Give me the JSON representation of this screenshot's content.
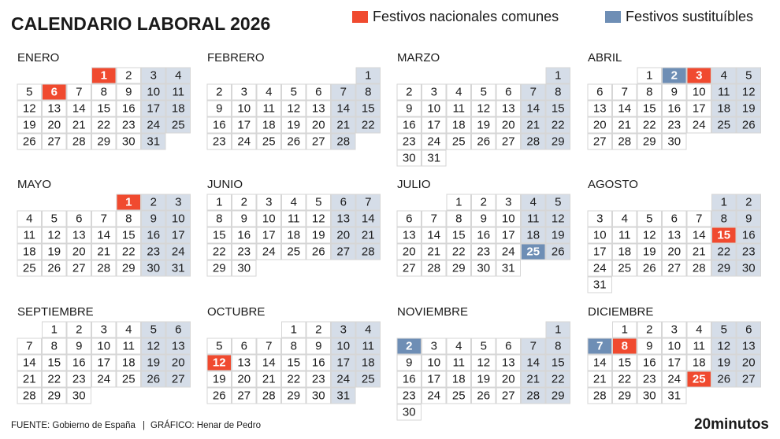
{
  "title": "CALENDARIO LABORAL 2026",
  "legend": [
    {
      "label": "Festivos nacionales comunes",
      "color": "#f04a2f"
    },
    {
      "label": "Festivos sustituíbles",
      "color": "#6e8eb5"
    }
  ],
  "months": [
    {
      "name": "ENERO",
      "days": [
        null,
        null,
        null,
        1,
        2,
        3,
        4,
        5,
        6,
        7,
        8,
        9,
        10,
        11,
        12,
        13,
        14,
        15,
        16,
        17,
        18,
        19,
        20,
        21,
        22,
        23,
        24,
        25,
        26,
        27,
        28,
        29,
        30,
        31
      ],
      "national": [
        1,
        6
      ]
    },
    {
      "name": "FEBRERO",
      "days": [
        null,
        null,
        null,
        null,
        null,
        null,
        1,
        2,
        3,
        4,
        5,
        6,
        7,
        8,
        9,
        10,
        11,
        12,
        13,
        14,
        15,
        16,
        17,
        18,
        19,
        20,
        21,
        22,
        23,
        24,
        25,
        26,
        27,
        28
      ]
    },
    {
      "name": "MARZO",
      "days": [
        null,
        null,
        null,
        null,
        null,
        null,
        1,
        2,
        3,
        4,
        5,
        6,
        7,
        8,
        9,
        10,
        11,
        12,
        13,
        14,
        15,
        16,
        17,
        18,
        19,
        20,
        21,
        22,
        23,
        24,
        25,
        26,
        27,
        28,
        29,
        30,
        31
      ]
    },
    {
      "name": "ABRIL",
      "days": [
        null,
        null,
        1,
        2,
        3,
        4,
        5,
        6,
        7,
        8,
        9,
        10,
        11,
        12,
        13,
        14,
        15,
        16,
        17,
        18,
        19,
        20,
        21,
        22,
        23,
        24,
        25,
        26,
        27,
        28,
        29,
        30
      ],
      "national": [
        3
      ],
      "substitute": [
        2
      ]
    },
    {
      "name": "MAYO",
      "days": [
        null,
        null,
        null,
        null,
        1,
        2,
        3,
        4,
        5,
        6,
        7,
        8,
        9,
        10,
        11,
        12,
        13,
        14,
        15,
        16,
        17,
        18,
        19,
        20,
        21,
        22,
        23,
        24,
        25,
        26,
        27,
        28,
        29,
        30,
        31
      ],
      "national": [
        1
      ]
    },
    {
      "name": "JUNIO",
      "days": [
        1,
        2,
        3,
        4,
        5,
        6,
        7,
        8,
        9,
        10,
        11,
        12,
        13,
        14,
        15,
        16,
        17,
        18,
        19,
        20,
        21,
        22,
        23,
        24,
        25,
        26,
        27,
        28,
        29,
        30
      ]
    },
    {
      "name": "JULIO",
      "days": [
        null,
        null,
        1,
        2,
        3,
        4,
        5,
        6,
        7,
        8,
        9,
        10,
        11,
        12,
        13,
        14,
        15,
        16,
        17,
        18,
        19,
        20,
        21,
        22,
        23,
        24,
        25,
        26,
        27,
        28,
        29,
        30,
        31
      ],
      "substitute": [
        25
      ]
    },
    {
      "name": "AGOSTO",
      "days": [
        null,
        null,
        null,
        null,
        null,
        1,
        2,
        3,
        4,
        5,
        6,
        7,
        8,
        9,
        10,
        11,
        12,
        13,
        14,
        15,
        16,
        17,
        18,
        19,
        20,
        21,
        22,
        23,
        24,
        25,
        26,
        27,
        28,
        29,
        30,
        31
      ],
      "national": [
        15
      ]
    },
    {
      "name": "SEPTIEMBRE",
      "days": [
        null,
        1,
        2,
        3,
        4,
        5,
        6,
        7,
        8,
        9,
        10,
        11,
        12,
        13,
        14,
        15,
        16,
        17,
        18,
        19,
        20,
        21,
        22,
        23,
        24,
        25,
        26,
        27,
        28,
        29,
        30
      ]
    },
    {
      "name": "OCTUBRE",
      "days": [
        null,
        null,
        null,
        1,
        2,
        3,
        4,
        5,
        6,
        7,
        8,
        9,
        10,
        11,
        12,
        13,
        14,
        15,
        16,
        17,
        18,
        19,
        20,
        21,
        22,
        23,
        24,
        25,
        26,
        27,
        28,
        29,
        30,
        31
      ],
      "national": [
        12
      ]
    },
    {
      "name": "NOVIEMBRE",
      "days": [
        null,
        null,
        null,
        null,
        null,
        null,
        1,
        2,
        3,
        4,
        5,
        6,
        7,
        8,
        9,
        10,
        11,
        12,
        13,
        14,
        15,
        16,
        17,
        18,
        19,
        20,
        21,
        22,
        23,
        24,
        25,
        26,
        27,
        28,
        29,
        30
      ],
      "substitute": [
        2
      ]
    },
    {
      "name": "DICIEMBRE",
      "days": [
        null,
        1,
        2,
        3,
        4,
        5,
        6,
        7,
        8,
        9,
        10,
        11,
        12,
        13,
        14,
        15,
        16,
        17,
        18,
        19,
        20,
        21,
        22,
        23,
        24,
        25,
        26,
        27,
        28,
        29,
        30,
        31
      ],
      "national": [
        8,
        25
      ],
      "substitute": [
        7
      ]
    }
  ],
  "footer": {
    "source": "FUENTE: Gobierno de España",
    "separator": "|",
    "credit": "GRÁFICO: Henar de Pedro"
  },
  "brand": "20minutos"
}
